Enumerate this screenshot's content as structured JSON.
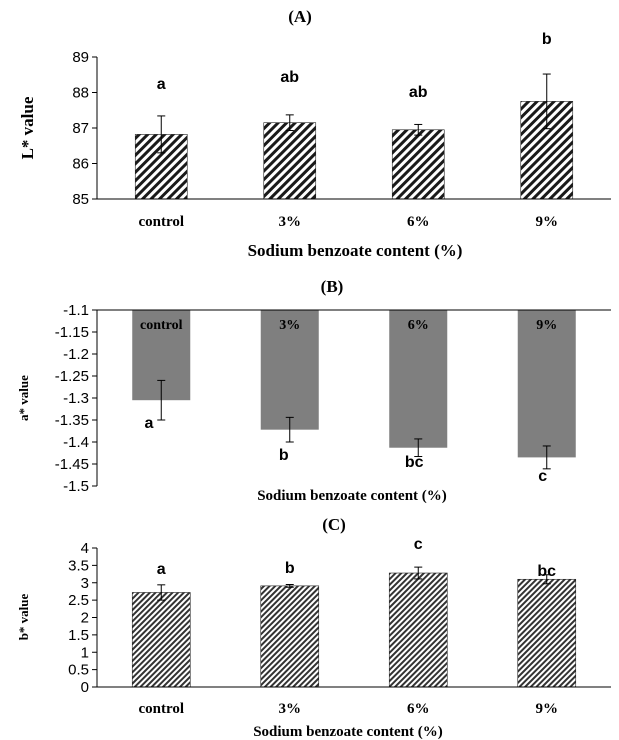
{
  "chart_data": [
    {
      "type": "bar",
      "title": "(A)",
      "xlabel": "Sodium benzoate content (%)",
      "ylabel": "L* value",
      "categories": [
        "control",
        "3%",
        "6%",
        "9%"
      ],
      "values": [
        86.82,
        87.15,
        86.95,
        87.75
      ],
      "errors": [
        0.52,
        0.22,
        0.15,
        0.77
      ],
      "significance": [
        "a",
        "ab",
        "ab",
        "b"
      ],
      "ylim": [
        85,
        89
      ],
      "yticks": [
        "85",
        "86",
        "87",
        "88",
        "89"
      ],
      "fill": "hatched",
      "grid": false
    },
    {
      "type": "bar",
      "title": "(B)",
      "xlabel": "Sodium benzoate content (%)",
      "ylabel": "a* value",
      "categories": [
        "control",
        "3%",
        "6%",
        "9%"
      ],
      "values": [
        -1.305,
        -1.372,
        -1.413,
        -1.435
      ],
      "errors": [
        0.045,
        0.028,
        0.02,
        0.026
      ],
      "significance": [
        "a",
        "b",
        "bc",
        "c"
      ],
      "ylim": [
        -1.5,
        -1.1
      ],
      "yticks": [
        "-1.5",
        "-1.45",
        "-1.4",
        "-1.35",
        "-1.3",
        "-1.25",
        "-1.2",
        "-1.15",
        "-1.1"
      ],
      "fill": "#7f7f7f",
      "grid": false
    },
    {
      "type": "bar",
      "title": "(C)",
      "xlabel": "Sodium benzoate content (%)",
      "ylabel": "b* value",
      "categories": [
        "control",
        "3%",
        "6%",
        "9%"
      ],
      "values": [
        2.72,
        2.91,
        3.28,
        3.1
      ],
      "errors": [
        0.22,
        0.04,
        0.17,
        0.13
      ],
      "significance": [
        "a",
        "b",
        "c",
        "bc"
      ],
      "ylim": [
        0,
        4
      ],
      "yticks": [
        "0",
        "0.5",
        "1",
        "1.5",
        "2",
        "2.5",
        "3",
        "3.5",
        "4"
      ],
      "fill": "dense-hatched",
      "grid": false
    }
  ]
}
